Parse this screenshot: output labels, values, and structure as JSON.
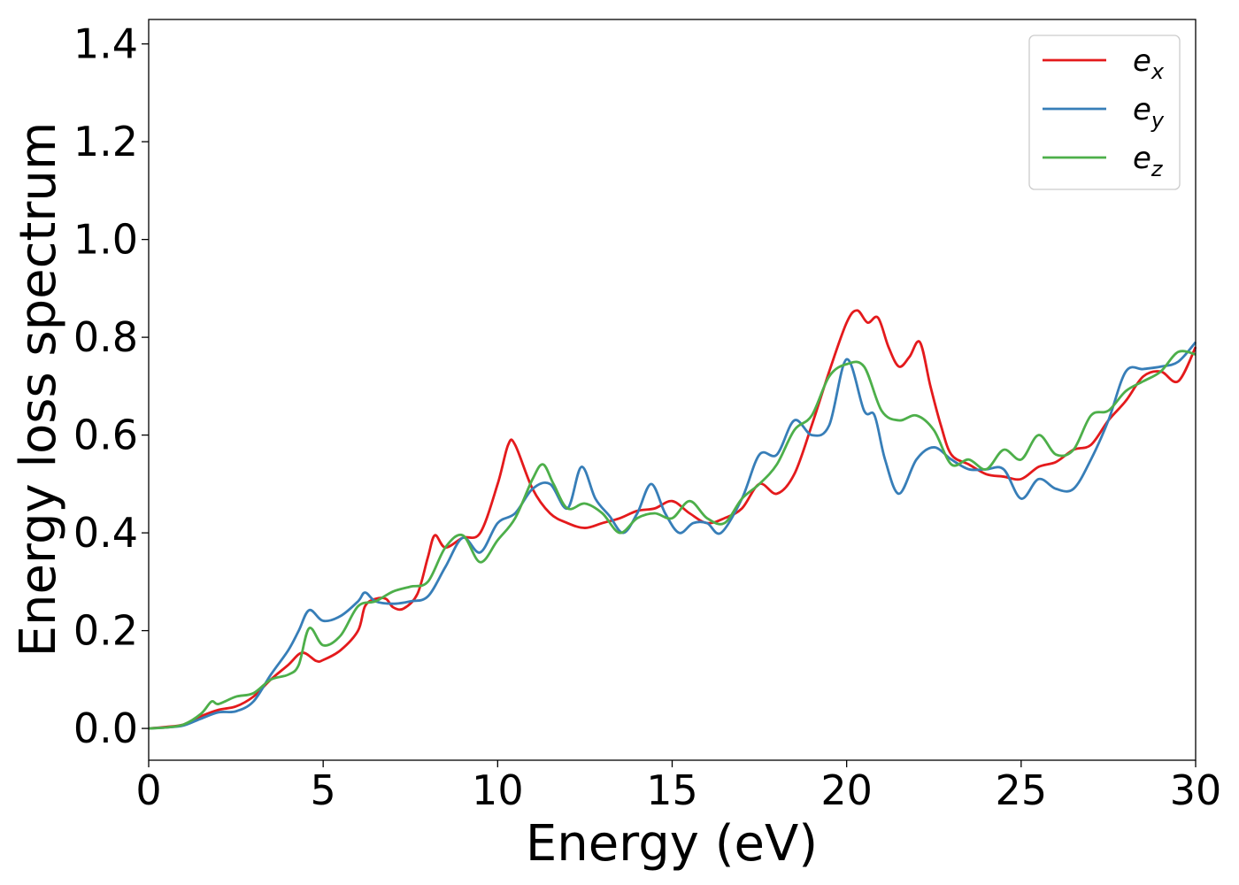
{
  "chart_data": {
    "type": "line",
    "title": "",
    "xlabel": "Energy (eV)",
    "ylabel": "Energy loss spectrum",
    "xlim": [
      0,
      30
    ],
    "ylim": [
      -0.065,
      1.45
    ],
    "xticks": [
      0,
      5,
      10,
      15,
      20,
      25,
      30
    ],
    "xtick_labels": [
      "0",
      "5",
      "10",
      "15",
      "20",
      "25",
      "30"
    ],
    "yticks": [
      0.0,
      0.2,
      0.4,
      0.6,
      0.8,
      1.0,
      1.2,
      1.4
    ],
    "ytick_labels": [
      "0.0",
      "0.2",
      "0.4",
      "0.6",
      "0.8",
      "1.0",
      "1.2",
      "1.4"
    ],
    "grid": false,
    "legend_position": "top-right",
    "series": [
      {
        "name": "e_x",
        "legend_base": "e",
        "legend_sub": "x",
        "color": "#e41a1c",
        "points": [
          [
            0,
            0.0
          ],
          [
            0.5,
            0.003
          ],
          [
            1.0,
            0.008
          ],
          [
            1.5,
            0.025
          ],
          [
            2.0,
            0.038
          ],
          [
            2.5,
            0.045
          ],
          [
            3.0,
            0.065
          ],
          [
            3.5,
            0.1
          ],
          [
            4.0,
            0.13
          ],
          [
            4.4,
            0.155
          ],
          [
            4.8,
            0.138
          ],
          [
            5.0,
            0.14
          ],
          [
            5.5,
            0.16
          ],
          [
            6.0,
            0.2
          ],
          [
            6.2,
            0.25
          ],
          [
            6.5,
            0.265
          ],
          [
            6.8,
            0.265
          ],
          [
            7.0,
            0.248
          ],
          [
            7.3,
            0.245
          ],
          [
            7.7,
            0.275
          ],
          [
            8.0,
            0.35
          ],
          [
            8.2,
            0.395
          ],
          [
            8.5,
            0.37
          ],
          [
            9.0,
            0.39
          ],
          [
            9.5,
            0.4
          ],
          [
            10.0,
            0.5
          ],
          [
            10.3,
            0.58
          ],
          [
            10.5,
            0.58
          ],
          [
            11.0,
            0.49
          ],
          [
            11.5,
            0.44
          ],
          [
            12.0,
            0.42
          ],
          [
            12.5,
            0.41
          ],
          [
            13.0,
            0.42
          ],
          [
            13.5,
            0.43
          ],
          [
            14.0,
            0.445
          ],
          [
            14.5,
            0.45
          ],
          [
            15.0,
            0.465
          ],
          [
            15.5,
            0.44
          ],
          [
            16.0,
            0.42
          ],
          [
            16.5,
            0.43
          ],
          [
            17.0,
            0.45
          ],
          [
            17.5,
            0.5
          ],
          [
            18.0,
            0.48
          ],
          [
            18.5,
            0.52
          ],
          [
            19.0,
            0.62
          ],
          [
            19.5,
            0.73
          ],
          [
            20.0,
            0.83
          ],
          [
            20.3,
            0.855
          ],
          [
            20.6,
            0.83
          ],
          [
            20.9,
            0.84
          ],
          [
            21.2,
            0.78
          ],
          [
            21.5,
            0.74
          ],
          [
            21.8,
            0.76
          ],
          [
            22.1,
            0.79
          ],
          [
            22.4,
            0.7
          ],
          [
            22.7,
            0.62
          ],
          [
            23.0,
            0.56
          ],
          [
            23.5,
            0.54
          ],
          [
            24.0,
            0.52
          ],
          [
            24.5,
            0.515
          ],
          [
            25.0,
            0.51
          ],
          [
            25.5,
            0.535
          ],
          [
            26.0,
            0.545
          ],
          [
            26.5,
            0.57
          ],
          [
            27.0,
            0.58
          ],
          [
            27.5,
            0.63
          ],
          [
            28.0,
            0.67
          ],
          [
            28.5,
            0.72
          ],
          [
            29.0,
            0.73
          ],
          [
            29.5,
            0.71
          ],
          [
            30.0,
            0.78
          ]
        ]
      },
      {
        "name": "e_y",
        "legend_base": "e",
        "legend_sub": "y",
        "color": "#377eb8",
        "points": [
          [
            0,
            0.0
          ],
          [
            0.5,
            0.002
          ],
          [
            1.0,
            0.006
          ],
          [
            1.5,
            0.02
          ],
          [
            2.0,
            0.033
          ],
          [
            2.5,
            0.035
          ],
          [
            3.0,
            0.055
          ],
          [
            3.5,
            0.11
          ],
          [
            4.0,
            0.16
          ],
          [
            4.3,
            0.2
          ],
          [
            4.6,
            0.242
          ],
          [
            5.0,
            0.22
          ],
          [
            5.5,
            0.23
          ],
          [
            6.0,
            0.26
          ],
          [
            6.2,
            0.278
          ],
          [
            6.5,
            0.26
          ],
          [
            7.0,
            0.255
          ],
          [
            7.5,
            0.26
          ],
          [
            8.0,
            0.27
          ],
          [
            8.5,
            0.33
          ],
          [
            9.0,
            0.39
          ],
          [
            9.5,
            0.36
          ],
          [
            10.0,
            0.42
          ],
          [
            10.5,
            0.44
          ],
          [
            11.0,
            0.49
          ],
          [
            11.5,
            0.5
          ],
          [
            12.0,
            0.45
          ],
          [
            12.4,
            0.535
          ],
          [
            12.8,
            0.47
          ],
          [
            13.2,
            0.435
          ],
          [
            13.6,
            0.4
          ],
          [
            14.0,
            0.44
          ],
          [
            14.4,
            0.5
          ],
          [
            14.8,
            0.44
          ],
          [
            15.2,
            0.4
          ],
          [
            15.6,
            0.42
          ],
          [
            16.0,
            0.42
          ],
          [
            16.4,
            0.4
          ],
          [
            17.0,
            0.47
          ],
          [
            17.5,
            0.56
          ],
          [
            18.0,
            0.56
          ],
          [
            18.5,
            0.63
          ],
          [
            19.0,
            0.6
          ],
          [
            19.5,
            0.62
          ],
          [
            20.0,
            0.755
          ],
          [
            20.5,
            0.65
          ],
          [
            20.8,
            0.64
          ],
          [
            21.1,
            0.55
          ],
          [
            21.5,
            0.48
          ],
          [
            22.0,
            0.55
          ],
          [
            22.5,
            0.575
          ],
          [
            23.0,
            0.55
          ],
          [
            23.5,
            0.53
          ],
          [
            24.0,
            0.53
          ],
          [
            24.5,
            0.53
          ],
          [
            25.0,
            0.47
          ],
          [
            25.5,
            0.51
          ],
          [
            26.0,
            0.49
          ],
          [
            26.5,
            0.49
          ],
          [
            27.0,
            0.55
          ],
          [
            27.5,
            0.63
          ],
          [
            28.0,
            0.73
          ],
          [
            28.5,
            0.735
          ],
          [
            29.0,
            0.74
          ],
          [
            29.5,
            0.75
          ],
          [
            30.0,
            0.79
          ]
        ]
      },
      {
        "name": "e_z",
        "legend_base": "e",
        "legend_sub": "z",
        "color": "#4daf4a",
        "points": [
          [
            0,
            0.0
          ],
          [
            0.5,
            0.002
          ],
          [
            1.0,
            0.008
          ],
          [
            1.5,
            0.03
          ],
          [
            1.8,
            0.055
          ],
          [
            2.0,
            0.05
          ],
          [
            2.5,
            0.065
          ],
          [
            3.0,
            0.072
          ],
          [
            3.5,
            0.1
          ],
          [
            4.0,
            0.11
          ],
          [
            4.3,
            0.13
          ],
          [
            4.6,
            0.205
          ],
          [
            5.0,
            0.17
          ],
          [
            5.5,
            0.19
          ],
          [
            6.0,
            0.25
          ],
          [
            6.5,
            0.26
          ],
          [
            7.0,
            0.28
          ],
          [
            7.5,
            0.29
          ],
          [
            8.0,
            0.3
          ],
          [
            8.5,
            0.37
          ],
          [
            9.0,
            0.395
          ],
          [
            9.5,
            0.34
          ],
          [
            10.0,
            0.385
          ],
          [
            10.5,
            0.43
          ],
          [
            11.0,
            0.51
          ],
          [
            11.3,
            0.54
          ],
          [
            11.6,
            0.5
          ],
          [
            12.0,
            0.45
          ],
          [
            12.5,
            0.46
          ],
          [
            13.0,
            0.44
          ],
          [
            13.5,
            0.4
          ],
          [
            14.0,
            0.43
          ],
          [
            14.5,
            0.44
          ],
          [
            15.0,
            0.43
          ],
          [
            15.5,
            0.465
          ],
          [
            16.0,
            0.43
          ],
          [
            16.5,
            0.42
          ],
          [
            17.0,
            0.47
          ],
          [
            17.5,
            0.5
          ],
          [
            18.0,
            0.54
          ],
          [
            18.5,
            0.61
          ],
          [
            19.0,
            0.64
          ],
          [
            19.5,
            0.72
          ],
          [
            20.0,
            0.745
          ],
          [
            20.5,
            0.74
          ],
          [
            21.0,
            0.65
          ],
          [
            21.5,
            0.63
          ],
          [
            22.0,
            0.64
          ],
          [
            22.5,
            0.61
          ],
          [
            23.0,
            0.54
          ],
          [
            23.5,
            0.55
          ],
          [
            24.0,
            0.53
          ],
          [
            24.5,
            0.57
          ],
          [
            25.0,
            0.55
          ],
          [
            25.5,
            0.6
          ],
          [
            26.0,
            0.56
          ],
          [
            26.5,
            0.57
          ],
          [
            27.0,
            0.64
          ],
          [
            27.5,
            0.65
          ],
          [
            28.0,
            0.69
          ],
          [
            28.5,
            0.71
          ],
          [
            29.0,
            0.73
          ],
          [
            29.5,
            0.77
          ],
          [
            30.0,
            0.765
          ]
        ]
      }
    ]
  }
}
